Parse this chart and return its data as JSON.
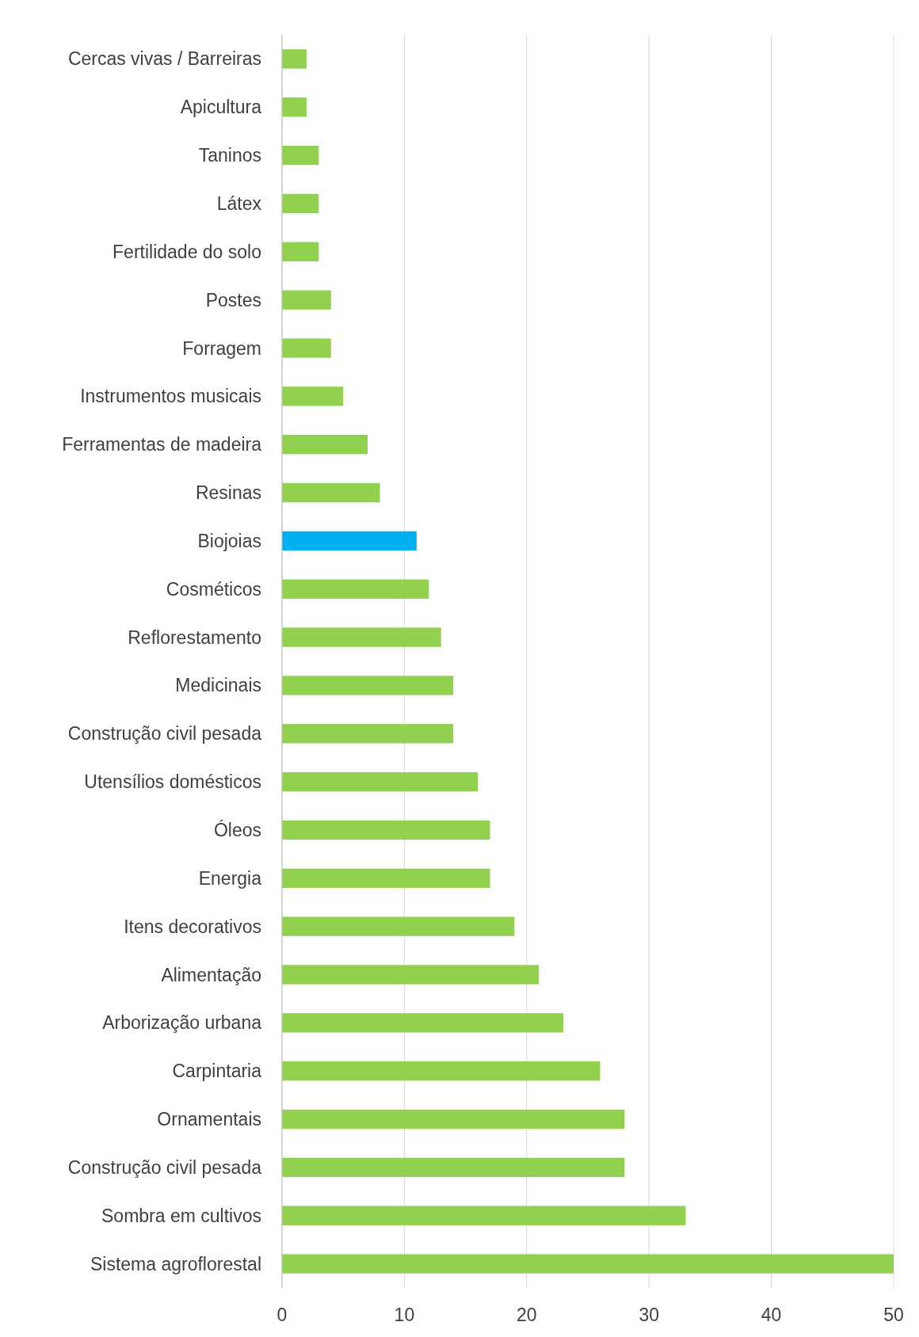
{
  "chart_data": {
    "type": "bar",
    "orientation": "horizontal",
    "categories": [
      "Cercas vivas / Barreiras",
      "Apicultura",
      "Taninos",
      "Látex",
      "Fertilidade do solo",
      "Postes",
      "Forragem",
      "Instrumentos musicais",
      "Ferramentas de madeira",
      "Resinas",
      "Biojoias",
      "Cosméticos",
      "Reflorestamento",
      "Medicinais",
      "Construção civil pesada",
      "Utensílios domésticos",
      "Óleos",
      "Energia",
      "Itens decorativos",
      "Alimentação",
      "Arborização urbana",
      "Carpintaria",
      "Ornamentais",
      "Construção civil pesada",
      "Sombra em cultivos",
      "Sistema agroflorestal"
    ],
    "values": [
      2,
      2,
      3,
      3,
      3,
      4,
      4,
      5,
      7,
      8,
      11,
      12,
      13,
      14,
      14,
      16,
      17,
      17,
      19,
      21,
      23,
      26,
      28,
      28,
      33,
      50
    ],
    "colors": [
      "#92d050",
      "#92d050",
      "#92d050",
      "#92d050",
      "#92d050",
      "#92d050",
      "#92d050",
      "#92d050",
      "#92d050",
      "#92d050",
      "#00b0f0",
      "#92d050",
      "#92d050",
      "#92d050",
      "#92d050",
      "#92d050",
      "#92d050",
      "#92d050",
      "#92d050",
      "#92d050",
      "#92d050",
      "#92d050",
      "#92d050",
      "#92d050",
      "#92d050",
      "#92d050"
    ],
    "xlim": [
      0,
      50
    ],
    "xticks": [
      0,
      10,
      20,
      30,
      40,
      50
    ],
    "grid": "x"
  }
}
